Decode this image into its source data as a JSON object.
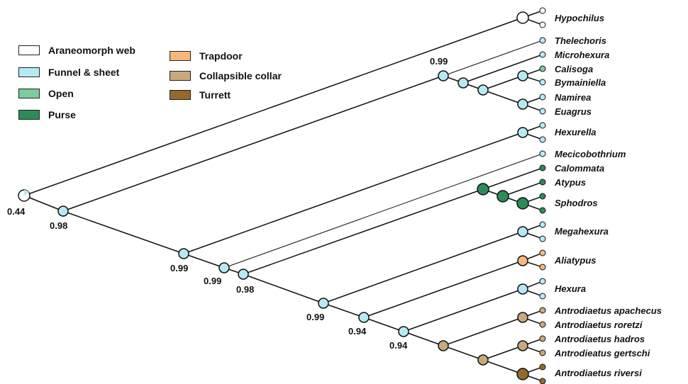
{
  "legend": {
    "items": [
      {
        "label": "Araneomorph web",
        "color": "#ffffff"
      },
      {
        "label": "Funnel & sheet",
        "color": "#b5eaf5"
      },
      {
        "label": "Open",
        "color": "#7dcc9d"
      },
      {
        "label": "Purse",
        "color": "#2e8b57"
      },
      {
        "label": "Trapdoor",
        "color": "#f7b77a"
      },
      {
        "label": "Collapsible collar",
        "color": "#c9a87c"
      },
      {
        "label": "Turrett",
        "color": "#946a2c"
      }
    ]
  },
  "taxa": {
    "hypochilus": "Hypochilus",
    "thelechoris": "Thelechoris",
    "microhexura": "Microhexura",
    "calisoga": "Calisoga",
    "bymainiella": "Bymainiella",
    "namirea": "Namirea",
    "euagrus": "Euagrus",
    "hexurella": "Hexurella",
    "mecicobothrium": "Mecicobothrium",
    "calommata": "Calommata",
    "atypus": "Atypus",
    "sphodros": "Sphodros",
    "megahexura": "Megahexura",
    "aliatypus": "Aliatypus",
    "hexura": "Hexura",
    "apachecus": "Antrodiaetus apachecus",
    "roretzi": "Antrodiaetus roretzi",
    "hadros": "Antrodiaetus hadros",
    "gertschi": "Antrodieatus gertschi",
    "riversi": "Antrodiaetus riversi"
  },
  "support": {
    "root": "0.44",
    "n1": "0.98",
    "n2": "0.99",
    "n3": "0.99",
    "n4": "0.98",
    "n5": "0.99",
    "n6": "0.94",
    "n7": "0.94",
    "mygal": "0.99"
  }
}
